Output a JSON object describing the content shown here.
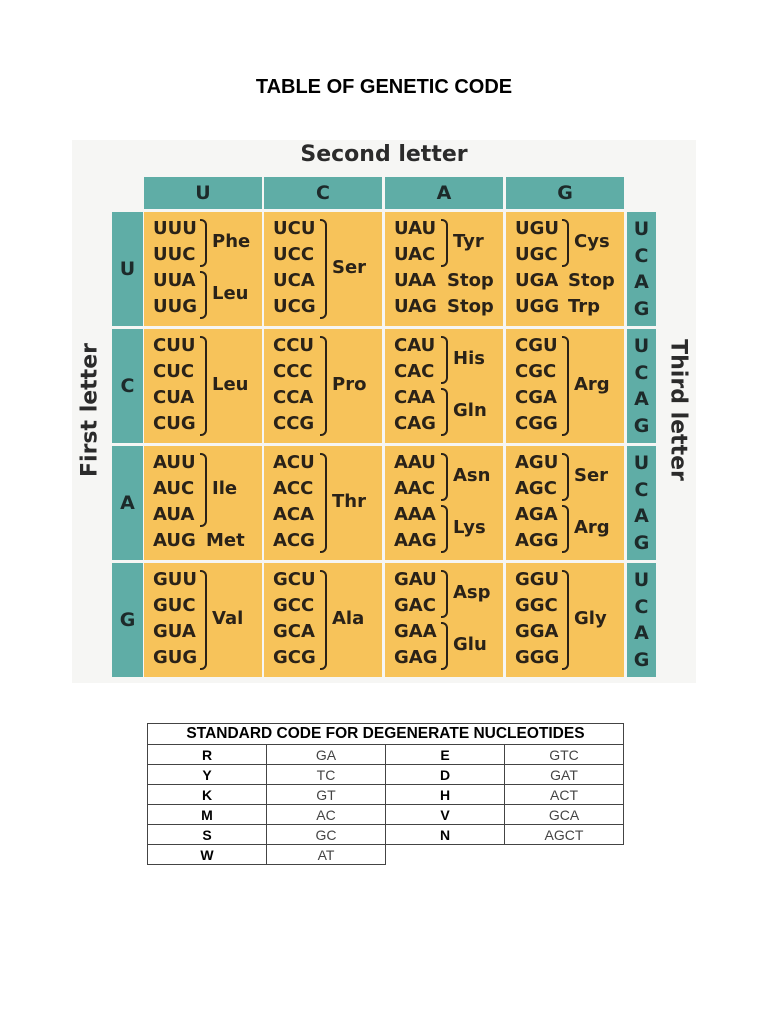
{
  "title": "TABLE OF GENETIC CODE",
  "genetic_code": {
    "second_letter_label": "Second letter",
    "first_letter_label": "First letter",
    "third_letter_label": "Third letter",
    "columns": [
      "U",
      "C",
      "A",
      "G"
    ],
    "rows": [
      "U",
      "C",
      "A",
      "G"
    ],
    "third_letters": [
      "U",
      "C",
      "A",
      "G"
    ],
    "cells": [
      [
        {
          "codons": [
            "UUU",
            "UUC",
            "UUA",
            "UUG"
          ],
          "groups": [
            {
              "aa": "Phe",
              "span": [
                0,
                1
              ],
              "brace": true
            },
            {
              "aa": "Leu",
              "span": [
                2,
                3
              ],
              "brace": true
            }
          ]
        },
        {
          "codons": [
            "UCU",
            "UCC",
            "UCA",
            "UCG"
          ],
          "groups": [
            {
              "aa": "Ser",
              "span": [
                0,
                3
              ],
              "brace": true
            }
          ]
        },
        {
          "codons": [
            "UAU",
            "UAC",
            "UAA",
            "UAG"
          ],
          "groups": [
            {
              "aa": "Tyr",
              "span": [
                0,
                1
              ],
              "brace": true
            },
            {
              "aa": "Stop",
              "span": [
                2,
                2
              ],
              "brace": false
            },
            {
              "aa": "Stop",
              "span": [
                3,
                3
              ],
              "brace": false
            }
          ]
        },
        {
          "codons": [
            "UGU",
            "UGC",
            "UGA",
            "UGG"
          ],
          "groups": [
            {
              "aa": "Cys",
              "span": [
                0,
                1
              ],
              "brace": true
            },
            {
              "aa": "Stop",
              "span": [
                2,
                2
              ],
              "brace": false
            },
            {
              "aa": "Trp",
              "span": [
                3,
                3
              ],
              "brace": false
            }
          ]
        }
      ],
      [
        {
          "codons": [
            "CUU",
            "CUC",
            "CUA",
            "CUG"
          ],
          "groups": [
            {
              "aa": "Leu",
              "span": [
                0,
                3
              ],
              "brace": true
            }
          ]
        },
        {
          "codons": [
            "CCU",
            "CCC",
            "CCA",
            "CCG"
          ],
          "groups": [
            {
              "aa": "Pro",
              "span": [
                0,
                3
              ],
              "brace": true
            }
          ]
        },
        {
          "codons": [
            "CAU",
            "CAC",
            "CAA",
            "CAG"
          ],
          "groups": [
            {
              "aa": "His",
              "span": [
                0,
                1
              ],
              "brace": true
            },
            {
              "aa": "Gln",
              "span": [
                2,
                3
              ],
              "brace": true
            }
          ]
        },
        {
          "codons": [
            "CGU",
            "CGC",
            "CGA",
            "CGG"
          ],
          "groups": [
            {
              "aa": "Arg",
              "span": [
                0,
                3
              ],
              "brace": true
            }
          ]
        }
      ],
      [
        {
          "codons": [
            "AUU",
            "AUC",
            "AUA",
            "AUG"
          ],
          "groups": [
            {
              "aa": "Ile",
              "span": [
                0,
                2
              ],
              "brace": true
            },
            {
              "aa": "Met",
              "span": [
                3,
                3
              ],
              "brace": false
            }
          ]
        },
        {
          "codons": [
            "ACU",
            "ACC",
            "ACA",
            "ACG"
          ],
          "groups": [
            {
              "aa": "Thr",
              "span": [
                0,
                3
              ],
              "brace": true
            }
          ]
        },
        {
          "codons": [
            "AAU",
            "AAC",
            "AAA",
            "AAG"
          ],
          "groups": [
            {
              "aa": "Asn",
              "span": [
                0,
                1
              ],
              "brace": true
            },
            {
              "aa": "Lys",
              "span": [
                2,
                3
              ],
              "brace": true
            }
          ]
        },
        {
          "codons": [
            "AGU",
            "AGC",
            "AGA",
            "AGG"
          ],
          "groups": [
            {
              "aa": "Ser",
              "span": [
                0,
                1
              ],
              "brace": true
            },
            {
              "aa": "Arg",
              "span": [
                2,
                3
              ],
              "brace": true
            }
          ]
        }
      ],
      [
        {
          "codons": [
            "GUU",
            "GUC",
            "GUA",
            "GUG"
          ],
          "groups": [
            {
              "aa": "Val",
              "span": [
                0,
                3
              ],
              "brace": true
            }
          ]
        },
        {
          "codons": [
            "GCU",
            "GCC",
            "GCA",
            "GCG"
          ],
          "groups": [
            {
              "aa": "Ala",
              "span": [
                0,
                3
              ],
              "brace": true
            }
          ]
        },
        {
          "codons": [
            "GAU",
            "GAC",
            "GAA",
            "GAG"
          ],
          "groups": [
            {
              "aa": "Asp",
              "span": [
                0,
                1
              ],
              "brace": true
            },
            {
              "aa": "Glu",
              "span": [
                2,
                3
              ],
              "brace": true
            }
          ]
        },
        {
          "codons": [
            "GGU",
            "GGC",
            "GGA",
            "GGG"
          ],
          "groups": [
            {
              "aa": "Gly",
              "span": [
                0,
                3
              ],
              "brace": true
            }
          ]
        }
      ]
    ],
    "colors": {
      "header_teal": "#5fada6",
      "cell_orange": "#f7c35a",
      "text_dark": "#2a2218"
    }
  },
  "degenerate_table": {
    "header": "STANDARD CODE FOR DEGENERATE NUCLEOTIDES",
    "rows": [
      {
        "sym1": "R",
        "val1": "GA",
        "sym2": "E",
        "val2": "GTC"
      },
      {
        "sym1": "Y",
        "val1": "TC",
        "sym2": "D",
        "val2": "GAT"
      },
      {
        "sym1": "K",
        "val1": "GT",
        "sym2": "H",
        "val2": "ACT"
      },
      {
        "sym1": "M",
        "val1": "AC",
        "sym2": "V",
        "val2": "GCA"
      },
      {
        "sym1": "S",
        "val1": "GC",
        "sym2": "N",
        "val2": "AGCT"
      },
      {
        "sym1": "W",
        "val1": "AT",
        "sym2": "",
        "val2": ""
      }
    ]
  }
}
